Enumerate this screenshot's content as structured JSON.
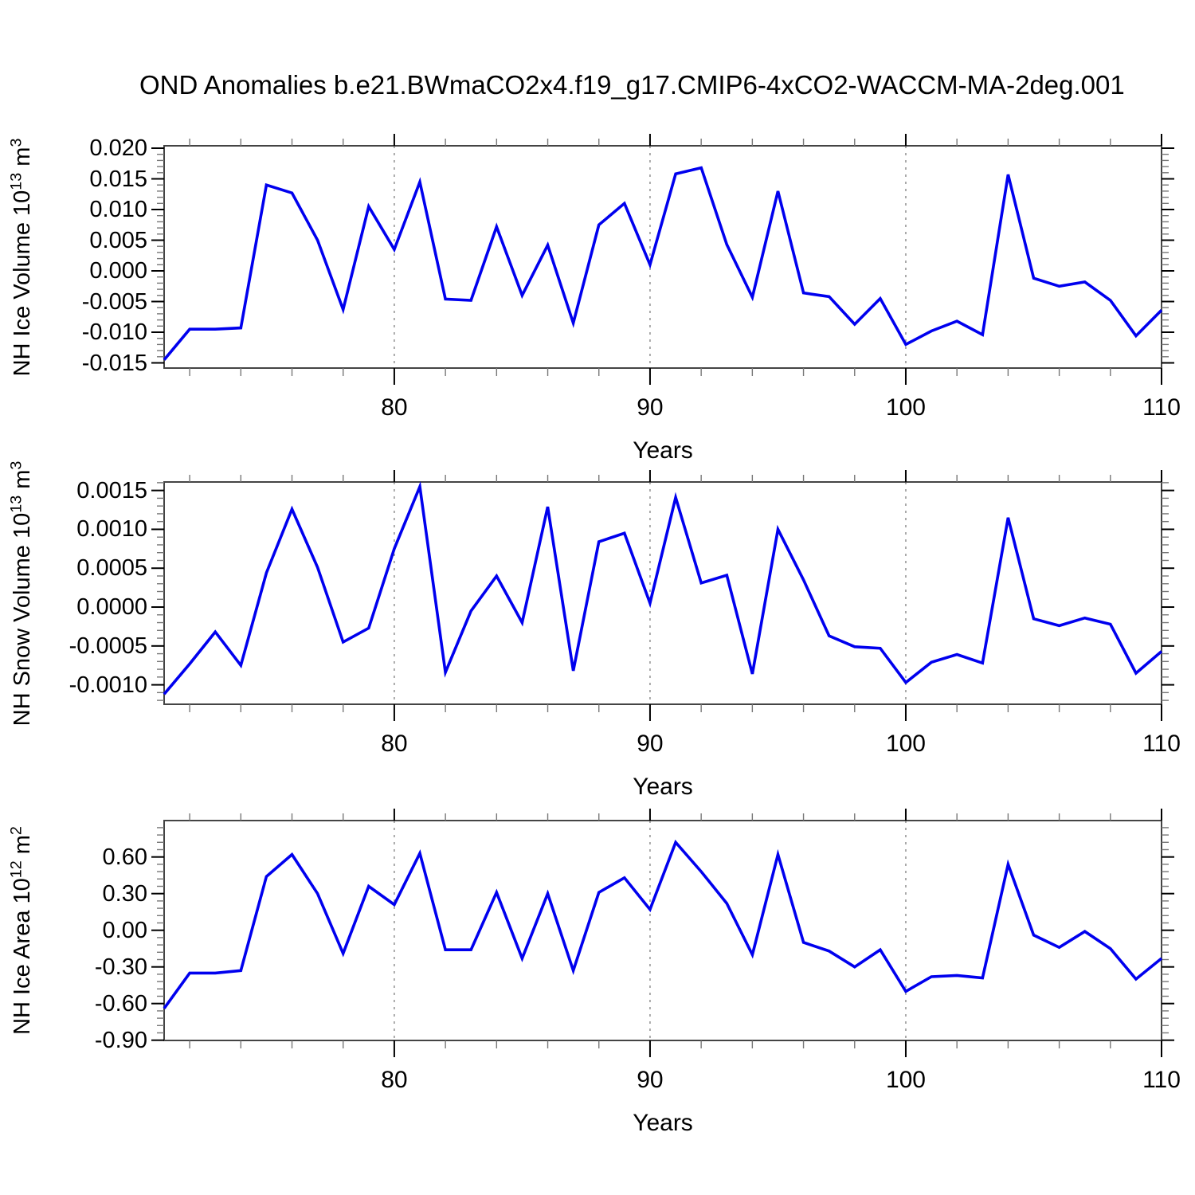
{
  "title": "OND Anomalies b.e21.BWmaCO2x4.f19_g17.CMIP6-4xCO2-WACCM-MA-2deg.001",
  "xlabel": "Years",
  "line_color": "#0000ee",
  "grid_years": [
    80,
    90,
    100
  ],
  "x_major_ticks": [
    80,
    90,
    100,
    110
  ],
  "chart_data": [
    {
      "type": "line",
      "title": "OND Anomalies b.e21.BWmaCO2x4.f19_g17.CMIP6-4xCO2-WACCM-MA-2deg.001",
      "xlabel": "Years",
      "ylabel": "NH Ice Volume 10^13 m^3",
      "ylabel_parts": [
        {
          "t": "NH Ice Volume 10"
        },
        {
          "t": "13",
          "sup": true
        },
        {
          "t": " m"
        },
        {
          "t": "3",
          "sup": true
        }
      ],
      "xlim": [
        71,
        110
      ],
      "ylim": [
        -0.015844,
        0.02039
      ],
      "x_major_ticks": [
        80,
        90,
        100,
        110
      ],
      "x_minor_step": 2,
      "y_minor_step": 0.001,
      "grid_on": "vertical-dashed-at-80-90-100",
      "legend": "none",
      "ytick_values": [
        0.02,
        0.015,
        0.01,
        0.005,
        0.0,
        -0.005,
        -0.01,
        -0.015
      ],
      "ytick_labels": [
        "0.020",
        "0.015",
        "0.010",
        "0.005",
        "0.000",
        "-0.005",
        "-0.010",
        "-0.015"
      ],
      "x": [
        71,
        72,
        73,
        74,
        75,
        76,
        77,
        78,
        79,
        80,
        81,
        82,
        83,
        84,
        85,
        86,
        87,
        88,
        89,
        90,
        91,
        92,
        93,
        94,
        95,
        96,
        97,
        98,
        99,
        100,
        101,
        102,
        103,
        104,
        105,
        106,
        107,
        108,
        109,
        110
      ],
      "values": [
        -0.0145,
        -0.0095,
        -0.0095,
        -0.0093,
        0.014,
        0.0127,
        0.005,
        -0.0063,
        0.0105,
        0.0035,
        0.0145,
        -0.0046,
        -0.0048,
        0.0072,
        -0.004,
        0.0042,
        -0.0085,
        0.0075,
        0.011,
        0.001,
        0.0158,
        0.0168,
        0.0043,
        -0.0043,
        0.013,
        -0.0036,
        -0.0042,
        -0.0087,
        -0.0045,
        -0.012,
        -0.0098,
        -0.0082,
        -0.0104,
        0.0157,
        -0.0012,
        -0.0025,
        -0.0018,
        -0.0048,
        -0.0106,
        -0.0064
      ]
    },
    {
      "type": "line",
      "title": "",
      "xlabel": "Years",
      "ylabel": "NH Snow Volume 10^13 m^3",
      "ylabel_parts": [
        {
          "t": "NH Snow Volume 10"
        },
        {
          "t": "13",
          "sup": true
        },
        {
          "t": " m"
        },
        {
          "t": "3",
          "sup": true
        }
      ],
      "xlim": [
        71,
        110
      ],
      "ylim": [
        -0.00125,
        0.001609
      ],
      "x_major_ticks": [
        80,
        90,
        100,
        110
      ],
      "x_minor_step": 2,
      "y_minor_step": 0.0001,
      "grid_on": "vertical-dashed-at-80-90-100",
      "legend": "none",
      "ytick_values": [
        0.0015,
        0.001,
        0.0005,
        0.0,
        -0.0005,
        -0.001
      ],
      "ytick_labels": [
        "0.0015",
        "0.0010",
        "0.0005",
        "0.0000",
        "-0.0005",
        "-0.0010"
      ],
      "x": [
        71,
        72,
        73,
        74,
        75,
        76,
        77,
        78,
        79,
        80,
        81,
        82,
        83,
        84,
        85,
        86,
        87,
        88,
        89,
        90,
        91,
        92,
        93,
        94,
        95,
        96,
        97,
        98,
        99,
        100,
        101,
        102,
        103,
        104,
        105,
        106,
        107,
        108,
        109,
        110
      ],
      "values": [
        -0.00112,
        -0.00073,
        -0.00032,
        -0.00075,
        0.00044,
        0.00126,
        0.00051,
        -0.00045,
        -0.00027,
        0.00075,
        0.00155,
        -0.00084,
        -5e-05,
        0.0004,
        -0.0002,
        0.00129,
        -0.00082,
        0.00084,
        0.00095,
        5e-05,
        0.00141,
        0.00031,
        0.00041,
        -0.00086,
        0.001,
        0.00035,
        -0.00037,
        -0.00051,
        -0.00053,
        -0.00097,
        -0.00071,
        -0.00061,
        -0.00072,
        0.00115,
        -0.00015,
        -0.00024,
        -0.00014,
        -0.00022,
        -0.00085,
        -0.00057
      ]
    },
    {
      "type": "line",
      "title": "",
      "xlabel": "Years",
      "ylabel": "NH Ice Area 10^12 m^2",
      "ylabel_parts": [
        {
          "t": "NH Ice Area 10"
        },
        {
          "t": "12",
          "sup": true
        },
        {
          "t": " m"
        },
        {
          "t": "2",
          "sup": true
        }
      ],
      "xlim": [
        71,
        110
      ],
      "ylim": [
        -0.902,
        0.898
      ],
      "x_major_ticks": [
        80,
        90,
        100,
        110
      ],
      "x_minor_step": 2,
      "y_minor_step": 0.06,
      "grid_on": "vertical-dashed-at-80-90-100",
      "legend": "none",
      "ytick_values": [
        0.6,
        0.3,
        0.0,
        -0.3,
        -0.6,
        -0.9
      ],
      "ytick_labels": [
        "0.60",
        "0.30",
        "0.00",
        "-0.30",
        "-0.60",
        "-0.90"
      ],
      "x": [
        71,
        72,
        73,
        74,
        75,
        76,
        77,
        78,
        79,
        80,
        81,
        82,
        83,
        84,
        85,
        86,
        87,
        88,
        89,
        90,
        91,
        92,
        93,
        94,
        95,
        96,
        97,
        98,
        99,
        100,
        101,
        102,
        103,
        104,
        105,
        106,
        107,
        108,
        109,
        110
      ],
      "values": [
        -0.64,
        -0.35,
        -0.35,
        -0.33,
        0.44,
        0.62,
        0.3,
        -0.19,
        0.36,
        0.21,
        0.63,
        -0.16,
        -0.16,
        0.31,
        -0.23,
        0.3,
        -0.33,
        0.31,
        0.43,
        0.17,
        0.72,
        0.48,
        0.22,
        -0.2,
        0.62,
        -0.1,
        -0.17,
        -0.3,
        -0.16,
        -0.5,
        -0.38,
        -0.37,
        -0.39,
        0.54,
        -0.04,
        -0.14,
        -0.01,
        -0.15,
        -0.4,
        -0.23
      ]
    }
  ]
}
